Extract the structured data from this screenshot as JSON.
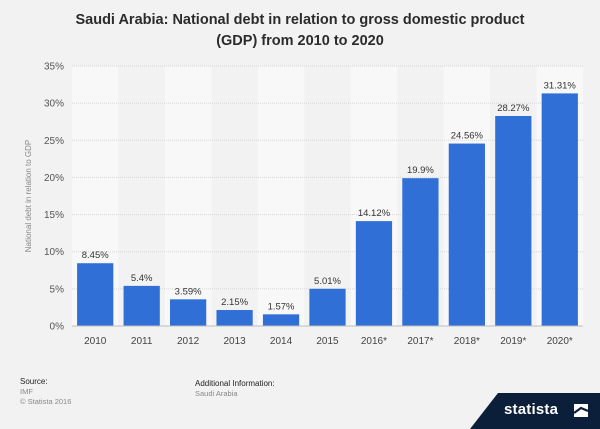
{
  "title_lines": [
    "Saudi Arabia: National debt in relation to gross domestic product",
    "(GDP) from 2010 to 2020"
  ],
  "chart_data": {
    "type": "bar",
    "categories": [
      "2010",
      "2011",
      "2012",
      "2013",
      "2014",
      "2015",
      "2016*",
      "2017*",
      "2018*",
      "2019*",
      "2020*"
    ],
    "values": [
      8.45,
      5.4,
      3.59,
      2.15,
      1.57,
      5.01,
      14.12,
      19.9,
      24.56,
      28.27,
      31.31
    ],
    "value_labels": [
      "8.45%",
      "5.4%",
      "3.59%",
      "2.15%",
      "1.57%",
      "5.01%",
      "14.12%",
      "19.9%",
      "24.56%",
      "28.27%",
      "31.31%"
    ],
    "ylabel": "National debt in relation to GDP",
    "ylim": [
      0,
      35
    ],
    "yticks": [
      0,
      5,
      10,
      15,
      20,
      25,
      30,
      35
    ],
    "ytick_labels": [
      "0%",
      "5%",
      "10%",
      "15%",
      "20%",
      "25%",
      "30%",
      "35%"
    ],
    "bar_color": "#2f6fd6",
    "grid": true
  },
  "footer": {
    "source_label": "Source:",
    "source_name": "IMF",
    "copyright": "© Statista 2016",
    "info_label": "Additional Information:",
    "info_value": "Saudi Arabia"
  },
  "brand": {
    "name": "statista",
    "logo_icon": "statista-logo-icon"
  }
}
